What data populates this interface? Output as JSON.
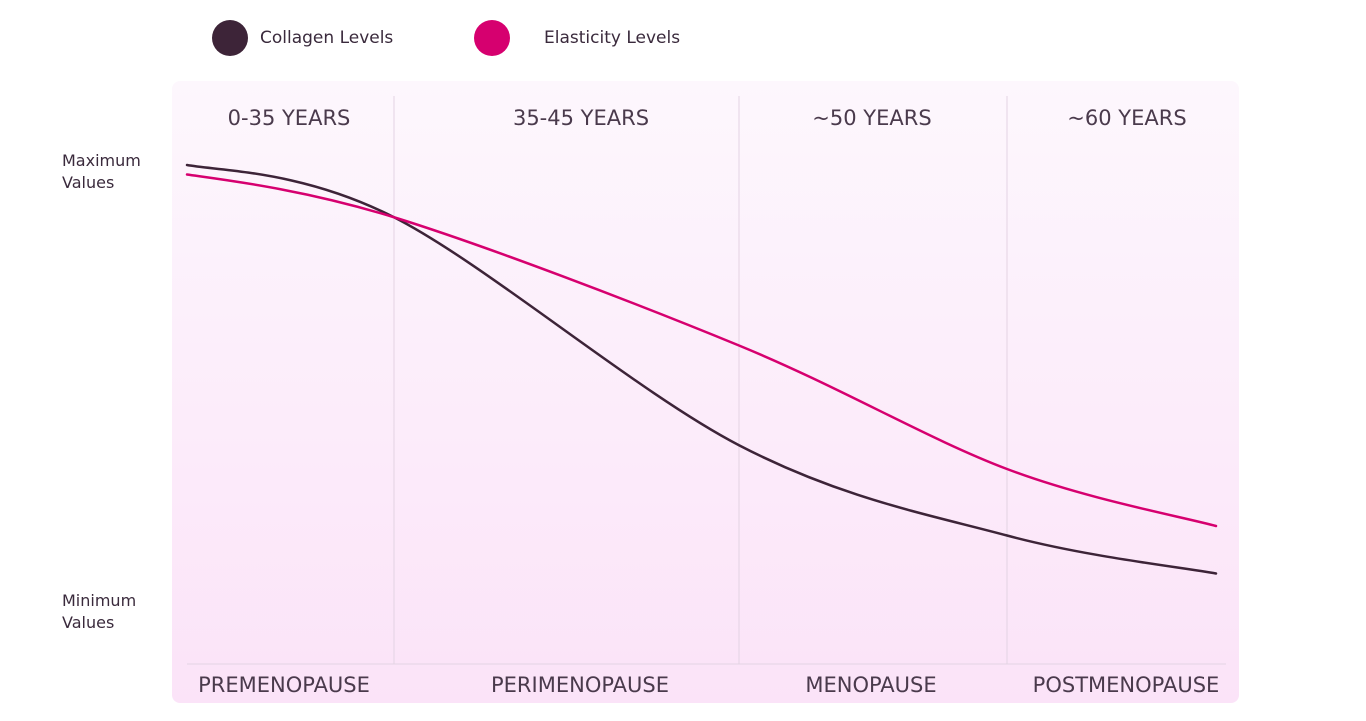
{
  "legend": {
    "items": [
      {
        "label": "Collagen Levels",
        "color": "#3d2438"
      },
      {
        "label": "Elasticity Levels",
        "color": "#d6006f"
      }
    ]
  },
  "y_labels": {
    "max": "Maximum Values",
    "min": "Minimum Values"
  },
  "panel": {
    "background_top": "#fdf7fd",
    "background_bottom": "#fbe3f8",
    "divider_color": "#e3d3e3"
  },
  "chart_data": {
    "type": "line",
    "x_categories": [
      "0-35 YEARS",
      "35-45 YEARS",
      "~50 YEARS",
      "~60 YEARS"
    ],
    "x_bottom_labels": [
      "PREMENOPAUSE",
      "PERIMENOPAUSE",
      "MENOPAUSE",
      "POSTMENOPAUSE"
    ],
    "ylim": [
      0,
      1
    ],
    "y_tick_labels": [
      "Minimum Values",
      "Maximum Values"
    ],
    "series": [
      {
        "name": "Collagen Levels",
        "color": "#3d2438",
        "x": [
          0,
          1,
          2,
          3,
          4
        ],
        "y": [
          1.0,
          0.89,
          0.41,
          0.22,
          0.14
        ]
      },
      {
        "name": "Elasticity Levels",
        "color": "#d6006f",
        "x": [
          0,
          1,
          2,
          3,
          4
        ],
        "y": [
          0.98,
          0.89,
          0.62,
          0.36,
          0.24
        ]
      }
    ],
    "grid": "vertical",
    "legend_position": "top-left"
  }
}
